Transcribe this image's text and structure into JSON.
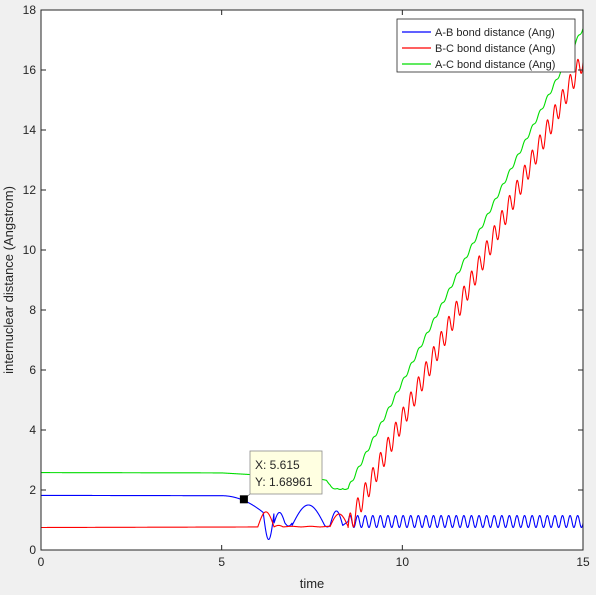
{
  "chart_data": {
    "type": "line",
    "xlabel": "time",
    "ylabel": "internuclear distance (Angstrom)",
    "xlim": [
      0,
      15
    ],
    "ylim": [
      0,
      18
    ],
    "xticks": [
      0,
      5,
      10,
      15
    ],
    "yticks": [
      0,
      2,
      4,
      6,
      8,
      10,
      12,
      14,
      16,
      18
    ],
    "grid": false,
    "legend_location": "top-right",
    "series": [
      {
        "name": "A-B bond distance (Ang)",
        "color": "#0000ff",
        "x": [
          0,
          5.0,
          5.615,
          6.0,
          6.2,
          6.4,
          6.6,
          6.8,
          7.2,
          7.6,
          7.9,
          8.1,
          8.4,
          8.8,
          15
        ],
        "y": [
          1.82,
          1.81,
          1.69,
          1.55,
          1.3,
          0.9,
          1.2,
          0.85,
          1.5,
          1.5,
          0.8,
          1.3,
          0.9,
          1.1,
          1.0
        ],
        "note_tail": "oscillates 0.75–1.15 from 8.5 to 15"
      },
      {
        "name": "B-C bond distance (Ang)",
        "color": "#ff0000",
        "x": [
          0,
          6.0,
          6.5,
          6.8,
          7.0,
          8.0,
          8.4,
          8.6,
          15
        ],
        "y": [
          0.75,
          0.77,
          1.3,
          0.8,
          0.78,
          0.8,
          1.2,
          0.9,
          16.6
        ]
      },
      {
        "name": "A-C bond distance (Ang)",
        "color": "#00dd00",
        "x": [
          0,
          5.0,
          6.0,
          7.5,
          8.0,
          8.2,
          8.35,
          8.5,
          15
        ],
        "y": [
          2.58,
          2.57,
          2.5,
          2.42,
          2.3,
          2.05,
          2.2,
          2.05,
          17.4
        ]
      }
    ],
    "datatip": {
      "x": 5.615,
      "y": 1.68961,
      "x_text": "X: 5.615",
      "y_text": "Y: 1.68961"
    }
  }
}
